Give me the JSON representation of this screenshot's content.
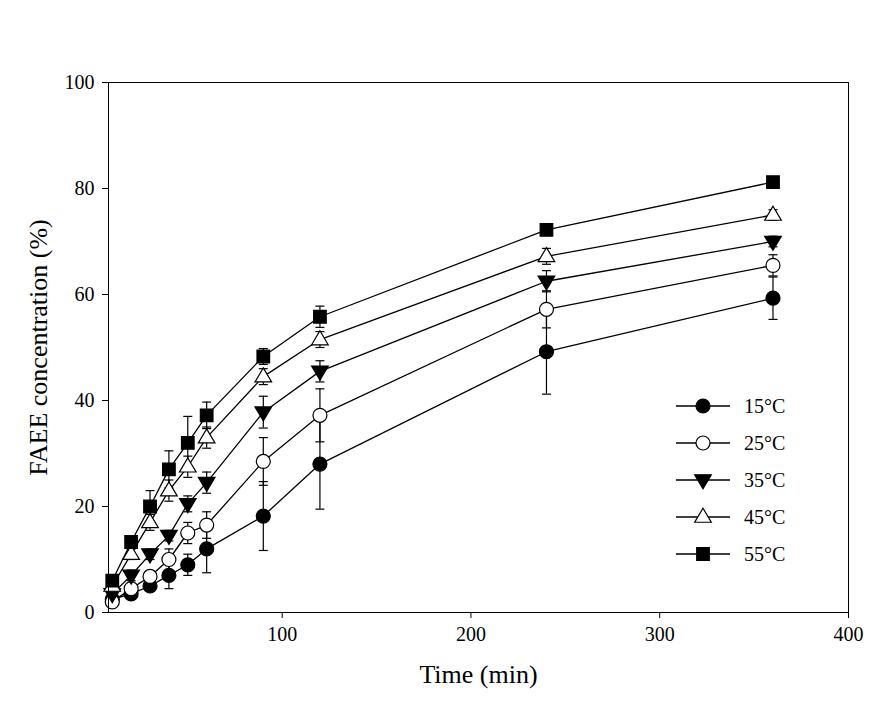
{
  "chart_data": {
    "type": "line",
    "x_label": "Time (min)",
    "y_label": "FAEE concentration (%)",
    "x": [
      10,
      20,
      30,
      40,
      50,
      60,
      90,
      120,
      240,
      360
    ],
    "xlim": [
      8,
      400
    ],
    "xticks": [
      100,
      200,
      300,
      400
    ],
    "ylim": [
      0,
      100
    ],
    "yticks": [
      0,
      20,
      40,
      60,
      80,
      100
    ],
    "grid": false,
    "legend": "lower right",
    "series": [
      {
        "name": "15°C",
        "color": "#000000",
        "marker": "circle",
        "line_style": "solid",
        "values": [
          2.5,
          3.5,
          5,
          7,
          9,
          12,
          18.2,
          28,
          49.2,
          59.3
        ],
        "errors": [
          0.5,
          1,
          1,
          2.5,
          2,
          4.5,
          6.5,
          8.5,
          8,
          4
        ]
      },
      {
        "name": "25°C",
        "color": "#000000",
        "marker": "circle-open",
        "line_style": "solid",
        "values": [
          2,
          4.5,
          6.8,
          10,
          15,
          16.5,
          28.5,
          37.2,
          57.2,
          65.5
        ],
        "errors": [
          0.5,
          1,
          1,
          2,
          2,
          2.5,
          4.5,
          5,
          3.5,
          2
        ]
      },
      {
        "name": "35°C",
        "color": "#000000",
        "marker": "triangle-down",
        "line_style": "solid",
        "values": [
          3.5,
          7,
          11,
          14.5,
          20.5,
          24.5,
          37.8,
          45.5,
          62.5,
          70
        ],
        "errors": [
          0.5,
          1,
          1,
          1,
          1.5,
          2,
          3,
          2,
          2,
          1
        ]
      },
      {
        "name": "45°C",
        "color": "#000000",
        "marker": "triangle-up-open",
        "line_style": "solid",
        "values": [
          5,
          11,
          17,
          23,
          27.5,
          33,
          44.5,
          51.5,
          67.2,
          75
        ],
        "errors": [
          0.5,
          1,
          1.5,
          2,
          2,
          2,
          1.5,
          1.5,
          1.5,
          1
        ]
      },
      {
        "name": "55°C",
        "color": "#000000",
        "marker": "square",
        "line_style": "solid",
        "values": [
          6,
          13.3,
          20,
          27,
          32,
          37.2,
          48.3,
          55.8,
          72.2,
          81.2
        ],
        "errors": [
          0.5,
          1,
          3,
          3.5,
          5,
          2.5,
          1.5,
          2,
          1,
          0.5
        ]
      }
    ]
  }
}
